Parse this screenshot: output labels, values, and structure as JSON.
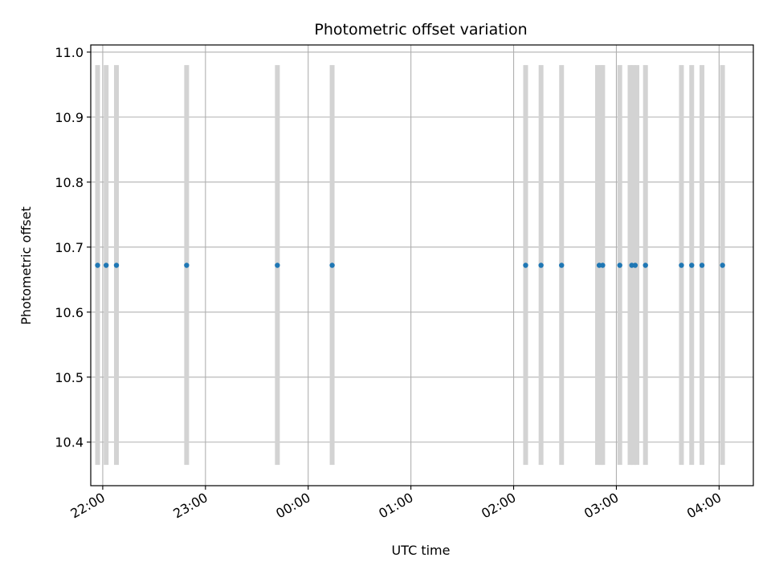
{
  "chart_data": {
    "type": "scatter",
    "title": "Photometric offset variation",
    "xlabel": "UTC time",
    "ylabel": "Photometric offset",
    "grid": true,
    "x_axis": {
      "kind": "time",
      "range": [
        "21:53",
        "04:20"
      ],
      "ticks": [
        "22:00",
        "23:00",
        "00:00",
        "01:00",
        "02:00",
        "03:00",
        "04:00"
      ]
    },
    "y_axis": {
      "range": [
        10.333,
        11.011
      ],
      "ticks": [
        "10.4",
        "10.5",
        "10.6",
        "10.7",
        "10.8",
        "10.9",
        "11.0"
      ]
    },
    "series": [
      {
        "color": "#1f77b4",
        "x": [
          "21:57",
          "22:02",
          "22:08",
          "22:49",
          "23:42",
          "00:14",
          "02:07",
          "02:16",
          "02:28",
          "02:50",
          "02:52",
          "03:02",
          "03:09",
          "03:11",
          "03:17",
          "03:38",
          "03:44",
          "03:50",
          "04:02"
        ],
        "y": [
          10.672,
          10.672,
          10.672,
          10.672,
          10.672,
          10.672,
          10.672,
          10.672,
          10.672,
          10.672,
          10.672,
          10.672,
          10.672,
          10.672,
          10.672,
          10.672,
          10.672,
          10.672,
          10.672
        ]
      }
    ],
    "vertical_bands": {
      "color": "#d3d3d3",
      "y_range": [
        10.365,
        10.98
      ],
      "x": [
        "21:57",
        "22:02",
        "22:08",
        "22:49",
        "23:42",
        "00:14",
        "02:07",
        "02:16",
        "02:28",
        "02:49",
        "02:51",
        "02:52",
        "03:02",
        "03:08",
        "03:10",
        "03:12",
        "03:17",
        "03:38",
        "03:44",
        "03:50",
        "04:02"
      ]
    }
  }
}
